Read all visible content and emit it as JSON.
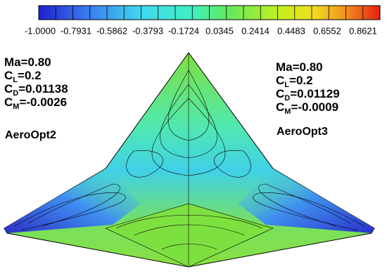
{
  "colorbar": {
    "labels": [
      "-1.0000",
      "-0.7931",
      "-0.5862",
      "-0.3793",
      "-0.1724",
      "0.0345",
      "0.2414",
      "0.4483",
      "0.6552",
      "0.8621"
    ]
  },
  "left": {
    "mach": "Ma=0.80",
    "cl": {
      "symbol": "C",
      "sub": "L",
      "rest": "=0.2"
    },
    "cd": {
      "symbol": "C",
      "sub": "D",
      "rest": "=0.01138"
    },
    "cm": {
      "symbol": "C",
      "sub": "M",
      "rest": "=-0.0026"
    },
    "name": "AeroOpt2"
  },
  "right": {
    "mach": "Ma=0.80",
    "cl": {
      "symbol": "C",
      "sub": "L",
      "rest": "=0.2"
    },
    "cd": {
      "symbol": "C",
      "sub": "D",
      "rest": "=0.01129"
    },
    "cm": {
      "symbol": "C",
      "sub": "M",
      "rest": "=-0.0009"
    },
    "name": "AeroOpt3"
  }
}
